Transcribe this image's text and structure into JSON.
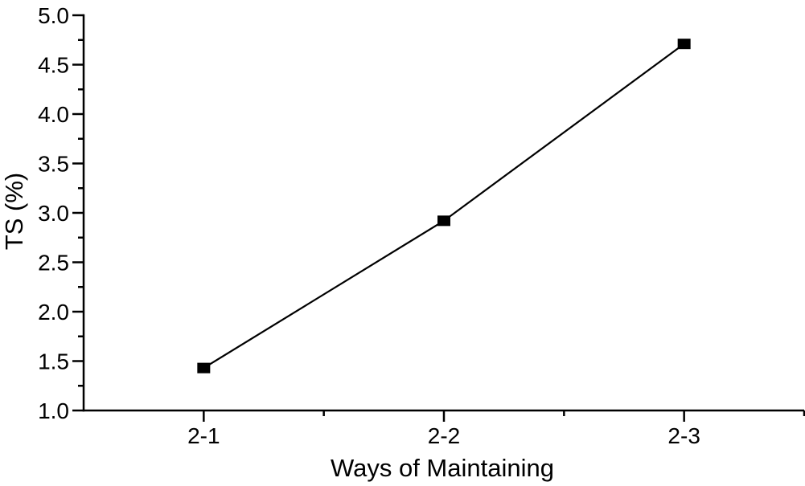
{
  "figure": {
    "background_color": "#ffffff",
    "foreground_color": "#000000"
  },
  "chart_data": {
    "type": "line",
    "title": "",
    "xlabel": "Ways of Maintaining",
    "ylabel": "TS (%)",
    "categories": [
      "2-1",
      "2-2",
      "2-3"
    ],
    "series": [
      {
        "name": "TS",
        "values": [
          1.43,
          2.92,
          4.71
        ]
      }
    ],
    "ylim": [
      1.0,
      5.0
    ],
    "y_major_step": 0.5,
    "y_minor_step": 0.25,
    "y_tick_labels": [
      "1.0",
      "1.5",
      "2.0",
      "2.5",
      "3.0",
      "3.5",
      "4.0",
      "4.5",
      "5.0"
    ],
    "x_tick_labels": [
      "2-1",
      "2-2",
      "2-3"
    ],
    "grid": false,
    "legend_position": "none",
    "marker": "filled-square",
    "line_color": "#000000",
    "marker_color": "#000000",
    "axis_color": "#000000",
    "tick_direction": "out"
  }
}
